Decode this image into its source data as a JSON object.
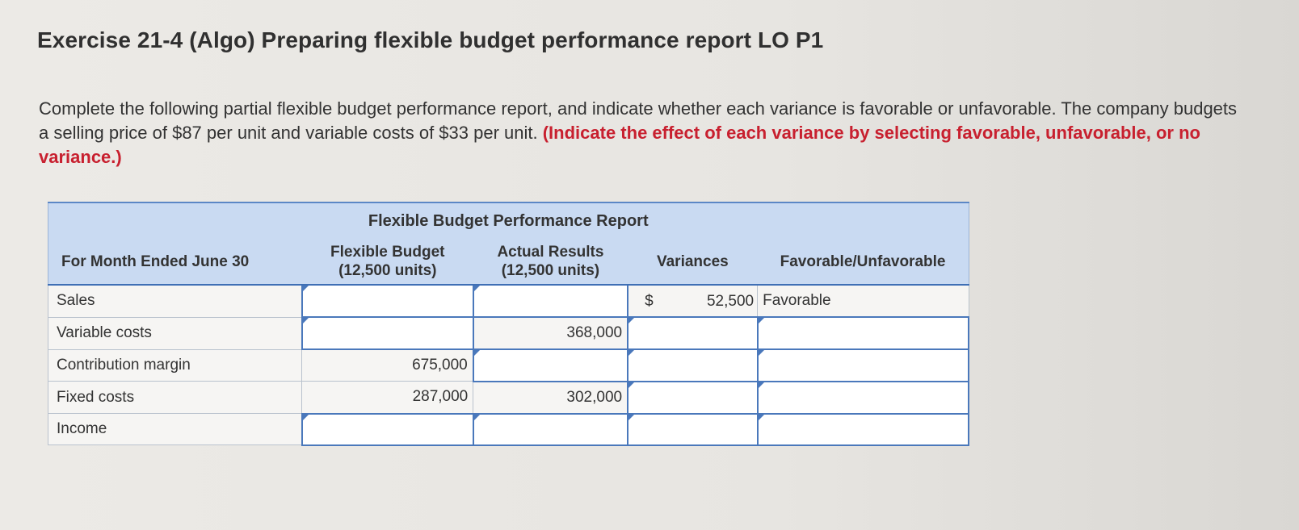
{
  "title": "Exercise 21-4 (Algo) Preparing flexible budget performance report LO P1",
  "instructions": {
    "text": "Complete the following partial flexible budget performance report, and indicate whether each variance is favorable or unfavorable. The company budgets a selling price of $87 per unit and variable costs of $33 per unit.",
    "emphasis": "(Indicate the effect of each variance by selecting favorable, unfavorable, or no variance.)"
  },
  "report": {
    "title": "Flexible Budget Performance Report",
    "headers": {
      "period": "For Month Ended June 30",
      "flexible_line1": "Flexible Budget",
      "flexible_line2": "(12,500 units)",
      "actual_line1": "Actual Results",
      "actual_line2": "(12,500 units)",
      "variances": "Variances",
      "fav_unfav": "Favorable/Unfavorable"
    },
    "rows": [
      {
        "label": "Sales",
        "flexible": "",
        "actual": "",
        "variance_currency": "$",
        "variance": "52,500",
        "fav_unfav": "Favorable"
      },
      {
        "label": "Variable costs",
        "flexible": "",
        "actual": "368,000",
        "variance": "",
        "fav_unfav": ""
      },
      {
        "label": "Contribution margin",
        "flexible": "675,000",
        "actual": "",
        "variance": "",
        "fav_unfav": ""
      },
      {
        "label": "Fixed costs",
        "flexible": "287,000",
        "actual": "302,000",
        "variance": "",
        "fav_unfav": ""
      },
      {
        "label": "Income",
        "flexible": "",
        "actual": "",
        "variance": "",
        "fav_unfav": ""
      }
    ]
  },
  "colors": {
    "header_bg": "#c9daf2",
    "input_border": "#4a78bb",
    "emphasis_text": "#c8202f"
  }
}
